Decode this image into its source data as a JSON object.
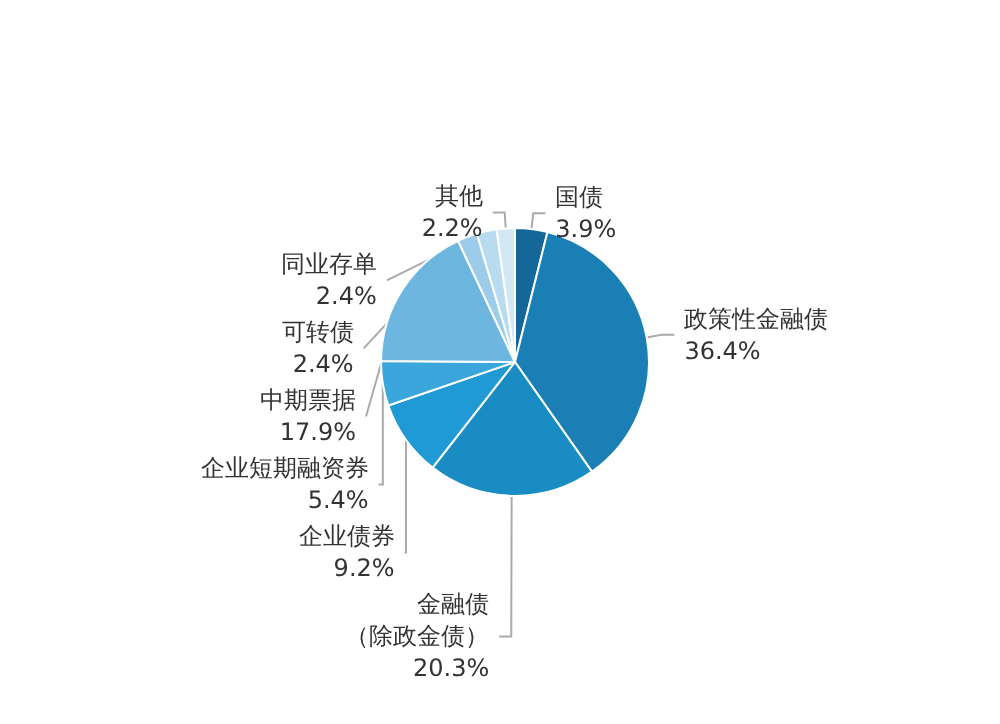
{
  "chart_data": {
    "type": "pie",
    "categories": [
      "国债",
      "政策性金融债",
      "金融债（除政金债）",
      "企业债券",
      "企业短期融资券",
      "中期票据",
      "可转债",
      "同业存单",
      "其他"
    ],
    "values": [
      3.9,
      36.4,
      20.3,
      9.2,
      5.4,
      17.9,
      2.4,
      2.4,
      2.2
    ],
    "value_labels": [
      "3.9%",
      "36.4%",
      "20.3%",
      "9.2%",
      "5.4%",
      "17.9%",
      "2.4%",
      "2.4%",
      "2.2%"
    ],
    "colors": [
      "#15679a",
      "#1a7fb5",
      "#1a8cc4",
      "#1f9ad4",
      "#3aa6dc",
      "#6cb6e0",
      "#9dcbea",
      "#b8dbef",
      "#d3e8f5"
    ]
  }
}
